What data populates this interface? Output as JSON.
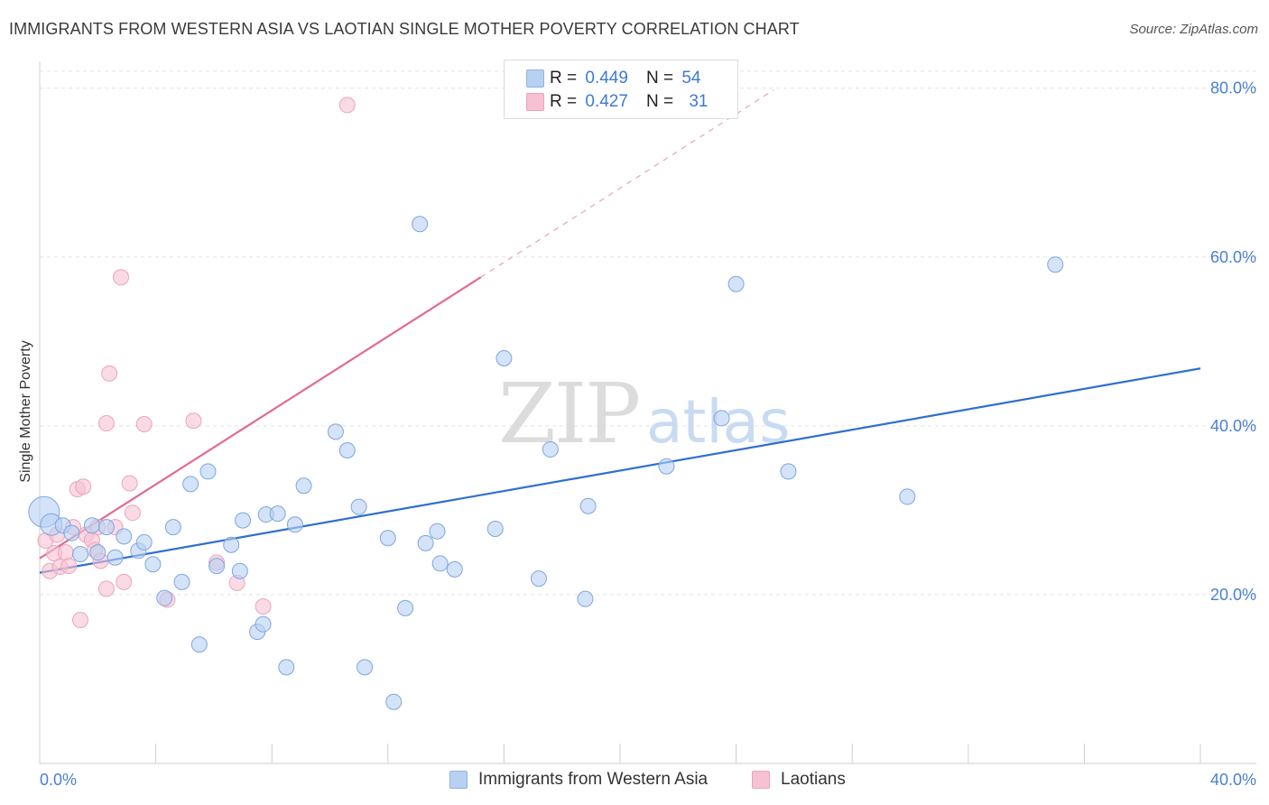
{
  "title": "IMMIGRANTS FROM WESTERN ASIA VS LAOTIAN SINGLE MOTHER POVERTY CORRELATION CHART",
  "source": "Source: ZipAtlas.com",
  "watermark": {
    "zip": "ZIP",
    "atlas": "atlas"
  },
  "colors": {
    "blue": "#4a86d8",
    "blue_fill": "#b8d0f2",
    "pink": "#e46a93",
    "pink_fill": "#f6c1d2",
    "tick": "#4a80d0",
    "grid": "#e3e3e3"
  },
  "legend": {
    "rows": [
      {
        "r_label": "R =",
        "r_value": "0.449",
        "n_label": "N =",
        "n_value": "54"
      },
      {
        "r_label": "R =",
        "r_value": "0.427",
        "n_label": "N =",
        "n_value": "31"
      }
    ]
  },
  "bottom_legend": {
    "blue": "Immigrants from Western Asia",
    "pink": "Laotians"
  },
  "chart_data": {
    "type": "scatter",
    "title": "IMMIGRANTS FROM WESTERN ASIA VS LAOTIAN SINGLE MOTHER POVERTY CORRELATION CHART",
    "xlabel": "",
    "ylabel": "Single Mother Poverty",
    "xlim": [
      0,
      40
    ],
    "ylim": [
      0,
      82
    ],
    "x_tick_labels": [
      "0.0%",
      "40.0%"
    ],
    "y_tick_labels": [
      "20.0%",
      "40.0%",
      "60.0%",
      "80.0%"
    ],
    "y_ticks": [
      20,
      40,
      60,
      80
    ],
    "grid": true,
    "legend_position": "top-center",
    "series": [
      {
        "name": "Immigrants from Western Asia",
        "R": 0.449,
        "N": 54,
        "trend": {
          "x": [
            0,
            40
          ],
          "y": [
            22.6,
            46.8
          ]
        },
        "points": [
          [
            0.15,
            29.8
          ],
          [
            0.4,
            28.3
          ],
          [
            0.8,
            28.2
          ],
          [
            1.1,
            27.3
          ],
          [
            1.4,
            24.8
          ],
          [
            1.8,
            28.2
          ],
          [
            2.0,
            25.0
          ],
          [
            2.3,
            28.0
          ],
          [
            2.6,
            24.4
          ],
          [
            2.9,
            26.9
          ],
          [
            3.4,
            25.2
          ],
          [
            3.6,
            26.2
          ],
          [
            3.9,
            23.6
          ],
          [
            4.3,
            19.6
          ],
          [
            4.6,
            28.0
          ],
          [
            4.9,
            21.5
          ],
          [
            5.2,
            33.1
          ],
          [
            5.5,
            14.1
          ],
          [
            5.8,
            34.6
          ],
          [
            6.1,
            23.4
          ],
          [
            6.6,
            25.9
          ],
          [
            6.9,
            22.8
          ],
          [
            7.0,
            28.8
          ],
          [
            7.5,
            15.6
          ],
          [
            7.7,
            16.5
          ],
          [
            7.8,
            29.5
          ],
          [
            8.2,
            29.6
          ],
          [
            8.5,
            11.4
          ],
          [
            8.8,
            28.3
          ],
          [
            9.1,
            32.9
          ],
          [
            10.2,
            39.3
          ],
          [
            10.6,
            37.1
          ],
          [
            11.0,
            30.4
          ],
          [
            11.2,
            11.4
          ],
          [
            12.0,
            26.7
          ],
          [
            12.2,
            7.3
          ],
          [
            12.6,
            18.4
          ],
          [
            13.1,
            63.9
          ],
          [
            13.3,
            26.1
          ],
          [
            13.7,
            27.5
          ],
          [
            13.8,
            23.7
          ],
          [
            14.3,
            23.0
          ],
          [
            15.7,
            27.8
          ],
          [
            16.0,
            48.0
          ],
          [
            17.2,
            21.9
          ],
          [
            17.6,
            37.2
          ],
          [
            18.8,
            19.5
          ],
          [
            18.9,
            30.5
          ],
          [
            21.6,
            35.2
          ],
          [
            23.5,
            40.9
          ],
          [
            24.0,
            56.8
          ],
          [
            25.8,
            34.6
          ],
          [
            29.9,
            31.6
          ],
          [
            35.0,
            59.1
          ]
        ]
      },
      {
        "name": "Laotians",
        "R": 0.427,
        "N": 31,
        "trend": {
          "x": [
            0,
            15.2
          ],
          "y": [
            24.3,
            57.6
          ]
        },
        "trend_dashed": {
          "x": [
            15.2,
            25.3
          ],
          "y": [
            57.6,
            79.8
          ]
        },
        "points": [
          [
            0.2,
            26.4
          ],
          [
            0.35,
            22.8
          ],
          [
            0.5,
            24.9
          ],
          [
            0.6,
            27.1
          ],
          [
            0.7,
            23.3
          ],
          [
            0.9,
            25.0
          ],
          [
            1.0,
            23.4
          ],
          [
            1.15,
            28.0
          ],
          [
            1.3,
            32.5
          ],
          [
            1.4,
            17.0
          ],
          [
            1.5,
            32.8
          ],
          [
            1.6,
            27.1
          ],
          [
            1.8,
            26.5
          ],
          [
            1.9,
            25.3
          ],
          [
            2.1,
            24.0
          ],
          [
            2.3,
            20.7
          ],
          [
            2.3,
            40.3
          ],
          [
            2.4,
            46.2
          ],
          [
            2.6,
            28.0
          ],
          [
            2.8,
            57.6
          ],
          [
            2.9,
            21.5
          ],
          [
            3.1,
            33.2
          ],
          [
            3.2,
            29.7
          ],
          [
            3.6,
            40.2
          ],
          [
            4.4,
            19.4
          ],
          [
            5.3,
            40.6
          ],
          [
            6.1,
            23.8
          ],
          [
            6.8,
            21.4
          ],
          [
            7.7,
            18.6
          ],
          [
            10.6,
            78.0
          ],
          [
            2.0,
            28.0
          ]
        ]
      }
    ]
  }
}
